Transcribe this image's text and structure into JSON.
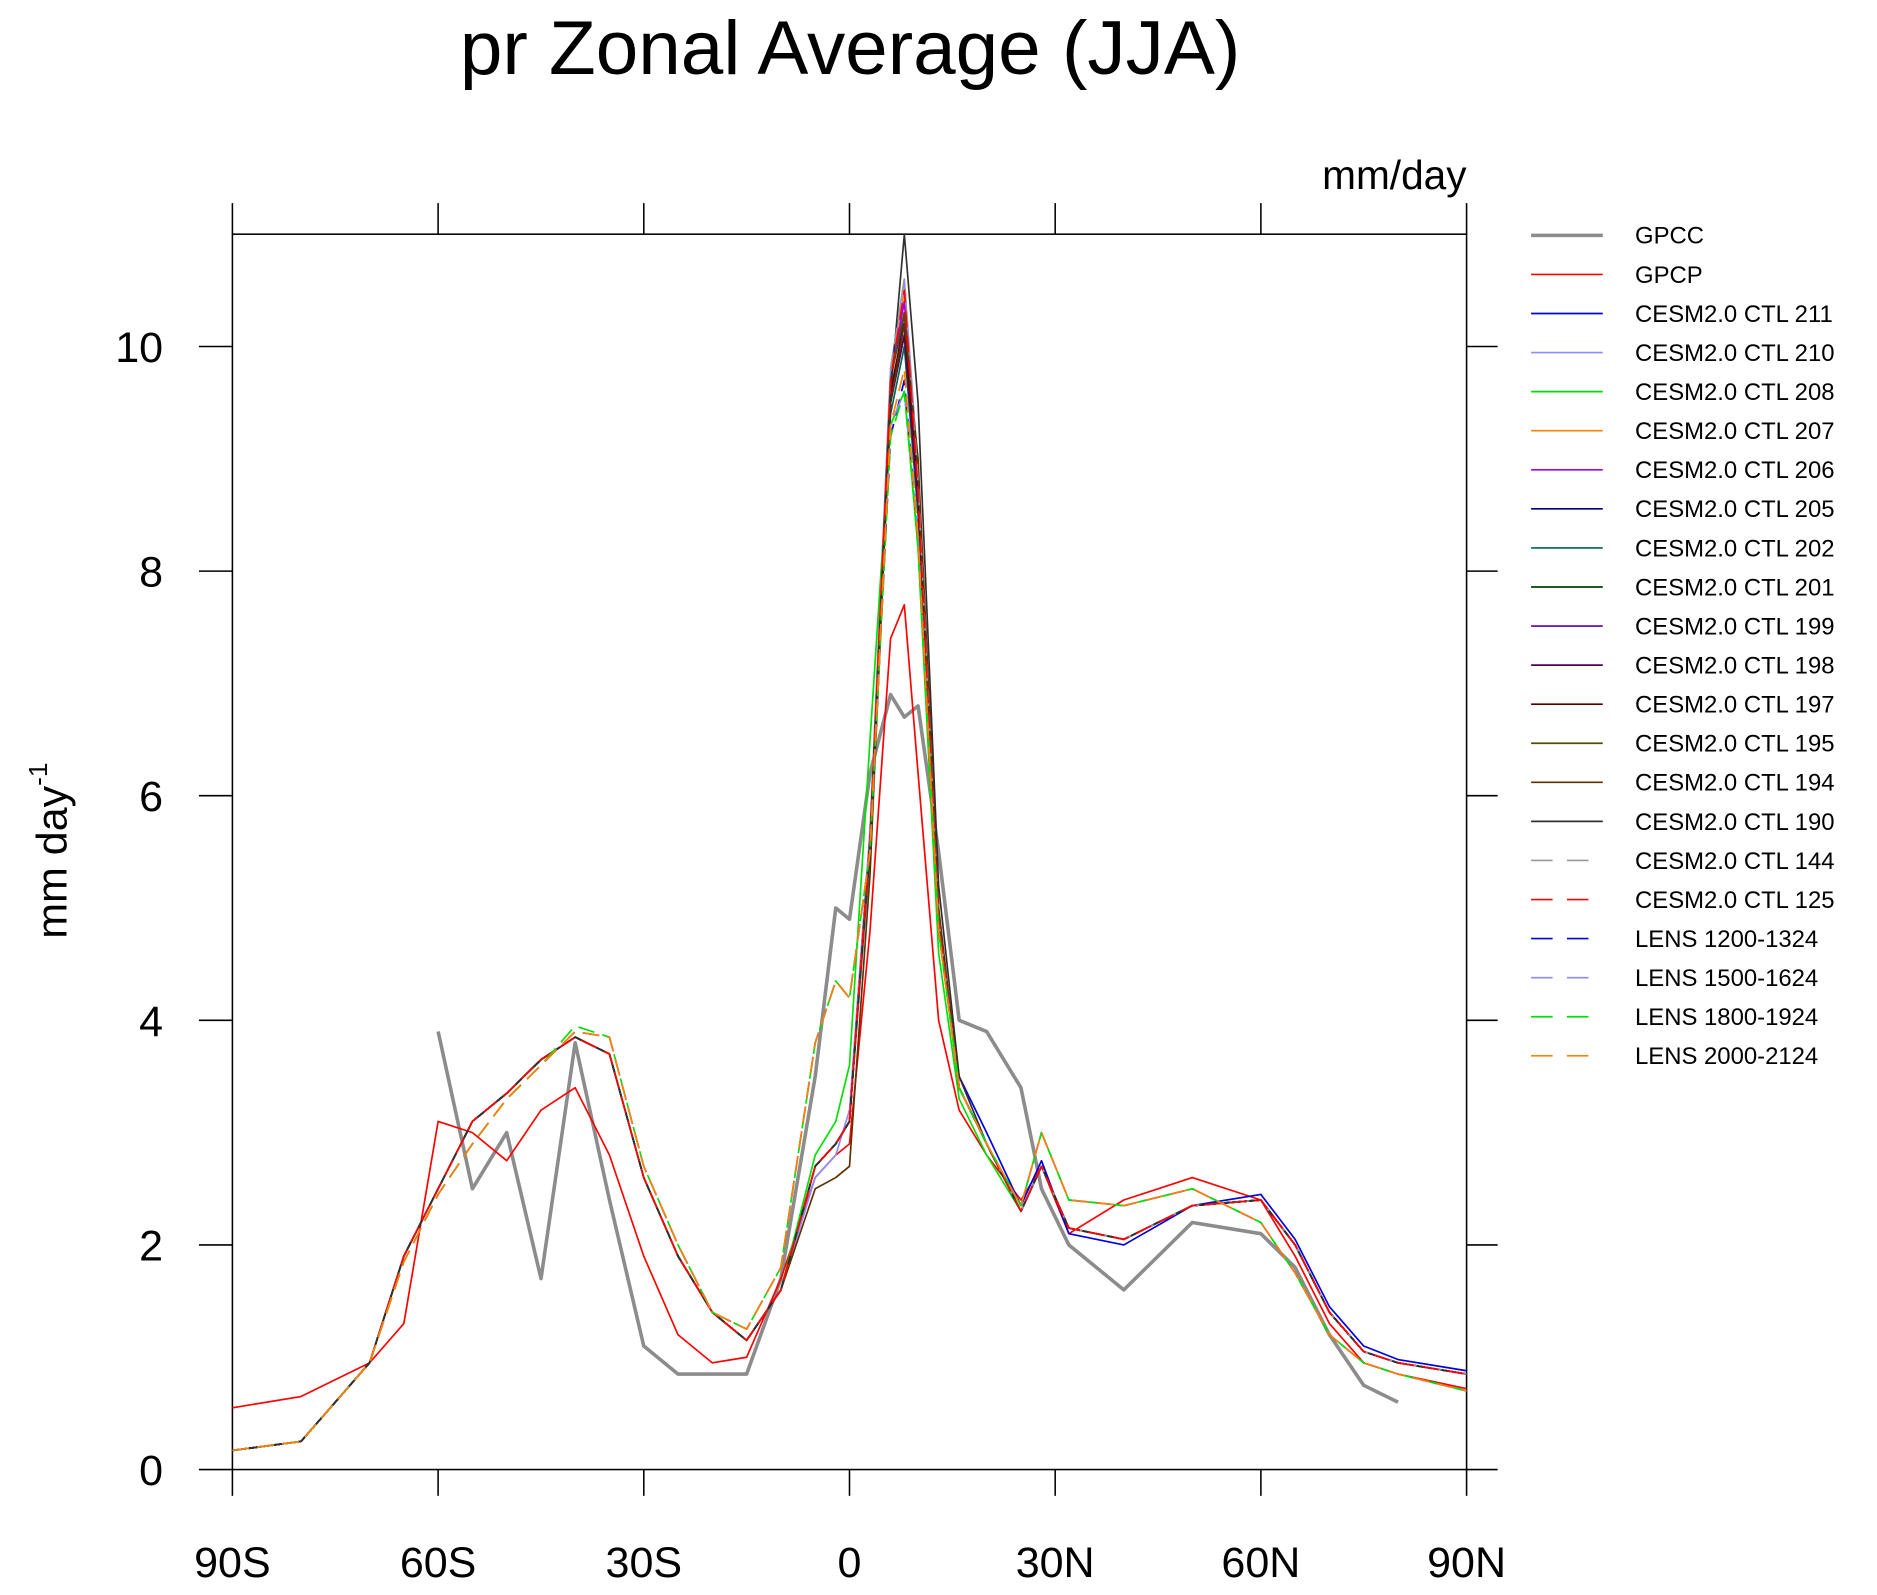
{
  "chart_data": {
    "type": "line",
    "title": "pr Zonal Average (JJA)",
    "units": "mm/day",
    "y_label": "mm day",
    "y_label_superscript": "-1",
    "x": [
      -90,
      -80,
      -70,
      -65,
      -60,
      -55,
      -50,
      -45,
      -40,
      -35,
      -30,
      -25,
      -20,
      -15,
      -10,
      -5,
      -2,
      0,
      3,
      6,
      8,
      10,
      13,
      16,
      20,
      25,
      28,
      32,
      40,
      50,
      60,
      65,
      70,
      75,
      80,
      90
    ],
    "xlim": [
      -90,
      90
    ],
    "xticks": [
      {
        "value": -90,
        "label": "90S"
      },
      {
        "value": -60,
        "label": "60S"
      },
      {
        "value": -30,
        "label": "30S"
      },
      0,
      {
        "value": 30,
        "label": "30N"
      },
      {
        "value": 60,
        "label": "60N"
      },
      {
        "value": 90,
        "label": "90N"
      }
    ],
    "ylim": [
      0,
      11
    ],
    "yticks": [
      0,
      2,
      4,
      6,
      8,
      10
    ],
    "series": [
      {
        "name": "GPCC",
        "color": "#8c8c8c",
        "linewidth": 3,
        "values": [
          null,
          null,
          null,
          null,
          3.9,
          2.5,
          3.0,
          1.7,
          3.8,
          2.4,
          1.1,
          0.85,
          0.85,
          0.85,
          1.7,
          3.5,
          5.0,
          4.9,
          6.2,
          6.9,
          6.7,
          6.8,
          5.5,
          4.0,
          3.9,
          3.4,
          2.5,
          2.0,
          1.6,
          2.2,
          2.1,
          1.8,
          1.2,
          0.75,
          0.6,
          null
        ]
      },
      {
        "name": "GPCP",
        "color": "#ff0000",
        "values": [
          0.55,
          0.65,
          0.95,
          1.3,
          3.1,
          3.0,
          2.75,
          3.2,
          3.4,
          2.8,
          1.9,
          1.2,
          0.95,
          1.0,
          1.7,
          2.6,
          2.8,
          2.9,
          4.8,
          7.4,
          7.7,
          6.2,
          4.0,
          3.2,
          2.8,
          2.4,
          2.7,
          2.1,
          2.4,
          2.6,
          2.4,
          1.9,
          1.3,
          0.95,
          0.85,
          0.72
        ]
      },
      {
        "name": "CESM2.0 CTL 211",
        "color": "#0000dd",
        "values": [
          0.17,
          0.25,
          0.95,
          1.9,
          2.5,
          3.1,
          3.35,
          3.65,
          3.85,
          3.7,
          2.6,
          1.9,
          1.4,
          1.15,
          1.6,
          2.7,
          2.9,
          3.1,
          5.6,
          9.6,
          10.2,
          8.7,
          4.9,
          3.5,
          3.0,
          2.35,
          2.75,
          2.1,
          2.0,
          2.35,
          2.45,
          2.05,
          1.45,
          1.1,
          0.98,
          0.88
        ]
      },
      {
        "name": "CESM2.0 CTL 210",
        "color": "#8c8cff",
        "values": [
          0.17,
          0.25,
          0.95,
          1.9,
          2.5,
          3.1,
          3.35,
          3.65,
          3.85,
          3.7,
          2.6,
          1.9,
          1.4,
          1.15,
          1.6,
          2.6,
          2.8,
          3.2,
          5.7,
          9.8,
          10.6,
          8.9,
          5.0,
          3.4,
          2.9,
          2.3,
          2.7,
          2.15,
          2.05,
          2.35,
          2.4,
          2.0,
          1.4,
          1.05,
          0.95,
          0.85
        ]
      },
      {
        "name": "CESM2.0 CTL 208",
        "color": "#00e000",
        "values": [
          0.17,
          0.25,
          0.95,
          1.9,
          2.5,
          3.1,
          3.35,
          3.65,
          3.85,
          3.7,
          2.6,
          1.9,
          1.4,
          1.15,
          1.6,
          2.8,
          3.1,
          3.6,
          6.5,
          9.3,
          9.6,
          8.2,
          4.6,
          3.3,
          2.8,
          2.3,
          2.7,
          2.15,
          2.05,
          2.35,
          2.4,
          2.0,
          1.4,
          1.05,
          0.95,
          0.85
        ]
      },
      {
        "name": "CESM2.0 CTL 207",
        "color": "#ff8000",
        "values": [
          0.17,
          0.25,
          0.95,
          1.9,
          2.5,
          3.1,
          3.35,
          3.65,
          3.85,
          3.7,
          2.6,
          1.9,
          1.4,
          1.15,
          1.6,
          2.7,
          2.9,
          3.1,
          5.6,
          9.7,
          10.5,
          8.8,
          4.9,
          3.4,
          2.9,
          2.3,
          2.7,
          2.15,
          2.05,
          2.35,
          2.4,
          2.0,
          1.4,
          1.05,
          0.95,
          0.85
        ]
      },
      {
        "name": "CESM2.0 CTL 206",
        "color": "#9900ff",
        "values": [
          0.17,
          0.25,
          0.95,
          1.9,
          2.5,
          3.1,
          3.35,
          3.65,
          3.85,
          3.7,
          2.6,
          1.9,
          1.4,
          1.15,
          1.6,
          2.7,
          2.9,
          3.1,
          5.6,
          9.7,
          10.4,
          8.8,
          4.9,
          3.4,
          2.9,
          2.3,
          2.7,
          2.15,
          2.05,
          2.35,
          2.4,
          2.0,
          1.4,
          1.05,
          0.95,
          0.85
        ]
      },
      {
        "name": "CESM2.0 CTL 205",
        "color": "#000080",
        "values": [
          0.17,
          0.25,
          0.95,
          1.9,
          2.5,
          3.1,
          3.35,
          3.65,
          3.85,
          3.7,
          2.6,
          1.9,
          1.4,
          1.15,
          1.6,
          2.7,
          2.9,
          3.1,
          5.6,
          9.5,
          10.1,
          8.6,
          4.9,
          3.4,
          2.9,
          2.3,
          2.7,
          2.15,
          2.05,
          2.35,
          2.4,
          2.0,
          1.4,
          1.05,
          0.95,
          0.85
        ]
      },
      {
        "name": "CESM2.0 CTL 202",
        "color": "#006650",
        "values": [
          0.17,
          0.25,
          0.95,
          1.9,
          2.5,
          3.1,
          3.35,
          3.65,
          3.85,
          3.7,
          2.6,
          1.9,
          1.4,
          1.15,
          1.6,
          2.7,
          2.9,
          3.1,
          5.6,
          9.4,
          10.0,
          8.5,
          4.9,
          3.4,
          2.9,
          2.3,
          2.7,
          2.15,
          2.05,
          2.35,
          2.4,
          2.0,
          1.4,
          1.05,
          0.95,
          0.85
        ]
      },
      {
        "name": "CESM2.0 CTL 201",
        "color": "#004000",
        "values": [
          0.17,
          0.25,
          0.95,
          1.9,
          2.5,
          3.1,
          3.35,
          3.65,
          3.85,
          3.7,
          2.6,
          1.9,
          1.4,
          1.15,
          1.6,
          2.7,
          2.9,
          3.1,
          5.6,
          9.6,
          10.2,
          8.7,
          4.9,
          3.4,
          2.9,
          2.3,
          2.7,
          2.15,
          2.05,
          2.35,
          2.4,
          2.0,
          1.4,
          1.05,
          0.95,
          0.85
        ]
      },
      {
        "name": "CESM2.0 CTL 199",
        "color": "#5500aa",
        "values": [
          0.17,
          0.25,
          0.95,
          1.9,
          2.5,
          3.1,
          3.35,
          3.65,
          3.85,
          3.7,
          2.6,
          1.9,
          1.4,
          1.15,
          1.6,
          2.7,
          2.9,
          3.1,
          5.6,
          9.5,
          10.3,
          8.7,
          4.9,
          3.4,
          2.9,
          2.3,
          2.7,
          2.15,
          2.05,
          2.35,
          2.4,
          2.0,
          1.4,
          1.05,
          0.95,
          0.85
        ]
      },
      {
        "name": "CESM2.0 CTL 198",
        "color": "#550055",
        "values": [
          0.17,
          0.25,
          0.95,
          1.9,
          2.5,
          3.1,
          3.35,
          3.65,
          3.85,
          3.7,
          2.6,
          1.9,
          1.4,
          1.15,
          1.6,
          2.7,
          2.9,
          3.1,
          5.6,
          9.5,
          10.1,
          8.6,
          4.9,
          3.4,
          2.9,
          2.3,
          2.7,
          2.15,
          2.05,
          2.35,
          2.4,
          2.0,
          1.4,
          1.05,
          0.95,
          0.85
        ]
      },
      {
        "name": "CESM2.0 CTL 197",
        "color": "#550000",
        "values": [
          0.17,
          0.25,
          0.95,
          1.9,
          2.5,
          3.1,
          3.35,
          3.65,
          3.85,
          3.7,
          2.6,
          1.9,
          1.4,
          1.15,
          1.6,
          2.7,
          2.9,
          3.1,
          5.6,
          9.6,
          10.2,
          8.8,
          4.9,
          3.4,
          2.9,
          2.3,
          2.7,
          2.15,
          2.05,
          2.35,
          2.4,
          2.0,
          1.4,
          1.05,
          0.95,
          0.85
        ]
      },
      {
        "name": "CESM2.0 CTL 195",
        "color": "#505000",
        "values": [
          0.17,
          0.25,
          0.95,
          1.9,
          2.5,
          3.1,
          3.35,
          3.65,
          3.85,
          3.7,
          2.6,
          1.9,
          1.4,
          1.15,
          1.6,
          2.7,
          2.9,
          3.1,
          5.6,
          9.7,
          10.3,
          8.9,
          4.9,
          3.4,
          2.9,
          2.3,
          2.7,
          2.15,
          2.05,
          2.35,
          2.4,
          2.0,
          1.4,
          1.05,
          0.95,
          0.85
        ]
      },
      {
        "name": "CESM2.0 CTL 194",
        "color": "#603000",
        "values": [
          0.17,
          0.25,
          0.95,
          1.9,
          2.5,
          3.1,
          3.35,
          3.65,
          3.85,
          3.7,
          2.6,
          1.9,
          1.4,
          1.15,
          1.6,
          2.5,
          2.6,
          2.7,
          5.3,
          9.5,
          10.2,
          9.0,
          5.0,
          3.4,
          2.9,
          2.3,
          2.7,
          2.15,
          2.05,
          2.35,
          2.4,
          2.0,
          1.4,
          1.05,
          0.95,
          0.85
        ]
      },
      {
        "name": "CESM2.0 CTL 190",
        "color": "#303030",
        "values": [
          0.17,
          0.25,
          0.95,
          1.9,
          2.5,
          3.1,
          3.35,
          3.65,
          3.85,
          3.7,
          2.6,
          1.9,
          1.4,
          1.15,
          1.6,
          2.7,
          2.9,
          3.1,
          5.5,
          9.6,
          11.0,
          9.5,
          5.2,
          3.5,
          2.9,
          2.3,
          2.7,
          2.15,
          2.05,
          2.35,
          2.4,
          2.0,
          1.4,
          1.05,
          0.95,
          0.85
        ]
      },
      {
        "name": "CESM2.0 CTL 144",
        "color": "#999999",
        "dashed": true,
        "values": [
          0.17,
          0.25,
          0.95,
          1.9,
          2.5,
          3.1,
          3.35,
          3.65,
          3.85,
          3.7,
          2.6,
          1.9,
          1.4,
          1.15,
          1.6,
          2.7,
          2.9,
          3.1,
          5.6,
          9.8,
          10.6,
          8.8,
          4.9,
          3.4,
          2.9,
          2.3,
          2.7,
          2.15,
          2.05,
          2.35,
          2.4,
          2.0,
          1.4,
          1.05,
          0.95,
          0.85
        ]
      },
      {
        "name": "CESM2.0 CTL 125",
        "color": "#ff0000",
        "dashed": true,
        "values": [
          0.17,
          0.25,
          0.95,
          1.9,
          2.5,
          3.1,
          3.35,
          3.65,
          3.85,
          3.7,
          2.6,
          1.9,
          1.4,
          1.15,
          1.6,
          2.7,
          2.9,
          3.1,
          5.6,
          9.7,
          10.5,
          8.7,
          4.9,
          3.4,
          2.9,
          2.3,
          2.7,
          2.15,
          2.05,
          2.35,
          2.4,
          2.0,
          1.4,
          1.05,
          0.95,
          0.85
        ]
      },
      {
        "name": "LENS 1200-1324",
        "color": "#0000dd",
        "dashed": true,
        "values": [
          0.17,
          0.25,
          0.95,
          1.85,
          2.45,
          2.9,
          3.3,
          3.6,
          3.9,
          3.85,
          2.7,
          2.0,
          1.4,
          1.25,
          1.8,
          3.8,
          4.35,
          4.2,
          5.5,
          9.2,
          9.7,
          8.3,
          4.8,
          3.4,
          2.9,
          2.35,
          3.0,
          2.4,
          2.35,
          2.5,
          2.2,
          1.75,
          1.2,
          0.95,
          0.85,
          0.7
        ]
      },
      {
        "name": "LENS 1500-1624",
        "color": "#8c8cff",
        "dashed": true,
        "values": [
          0.17,
          0.25,
          0.95,
          1.85,
          2.45,
          2.9,
          3.3,
          3.6,
          3.9,
          3.85,
          2.7,
          2.0,
          1.4,
          1.25,
          1.8,
          3.8,
          4.35,
          4.2,
          5.5,
          9.3,
          9.6,
          8.3,
          4.8,
          3.4,
          2.9,
          2.35,
          3.0,
          2.4,
          2.35,
          2.5,
          2.2,
          1.75,
          1.2,
          0.95,
          0.85,
          0.7
        ]
      },
      {
        "name": "LENS 1800-1924",
        "color": "#00e000",
        "dashed": true,
        "values": [
          0.17,
          0.25,
          0.95,
          1.85,
          2.45,
          2.9,
          3.3,
          3.6,
          3.95,
          3.85,
          2.7,
          2.0,
          1.4,
          1.25,
          1.8,
          3.8,
          4.35,
          4.2,
          5.5,
          9.2,
          9.6,
          8.2,
          4.8,
          3.4,
          2.9,
          2.35,
          3.0,
          2.4,
          2.35,
          2.5,
          2.2,
          1.75,
          1.2,
          0.95,
          0.85,
          0.7
        ]
      },
      {
        "name": "LENS 2000-2124",
        "color": "#ff8000",
        "dashed": true,
        "values": [
          0.17,
          0.25,
          0.95,
          1.85,
          2.45,
          2.9,
          3.3,
          3.6,
          3.9,
          3.85,
          2.7,
          2.0,
          1.4,
          1.25,
          1.8,
          3.8,
          4.35,
          4.2,
          5.5,
          9.3,
          9.8,
          8.3,
          4.8,
          3.4,
          2.9,
          2.35,
          3.0,
          2.4,
          2.35,
          2.5,
          2.2,
          1.75,
          1.2,
          0.95,
          0.85,
          0.7
        ]
      }
    ]
  }
}
